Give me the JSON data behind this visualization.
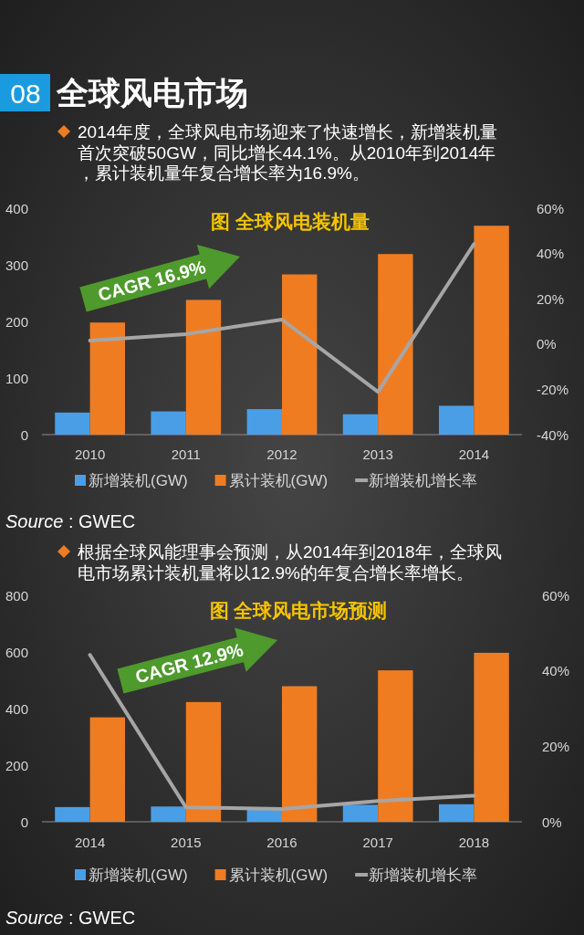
{
  "chart_data": [
    {
      "type": "bar",
      "title": "图 全球风电装机量",
      "categories": [
        "2010",
        "2011",
        "2012",
        "2013",
        "2014"
      ],
      "series": [
        {
          "name": "新增装机(GW)",
          "color": "#4a9ee6",
          "values": [
            39,
            41,
            45,
            36,
            51
          ]
        },
        {
          "name": "累计装机(GW)",
          "color": "#f07c22",
          "values": [
            198,
            238,
            283,
            319,
            369
          ]
        },
        {
          "name": "新增装机增长率",
          "type": "line",
          "axis": "y2",
          "color": "#a6a6a6",
          "values": [
            1.5,
            4.4,
            10.8,
            -21.1,
            44.1
          ]
        }
      ],
      "ylim": [
        0,
        400
      ],
      "yticks": [
        0,
        100,
        200,
        300,
        400
      ],
      "y2lim": [
        -40,
        60
      ],
      "y2ticks": [
        {
          "value": -40,
          "label": "-40%"
        },
        {
          "value": -20,
          "label": "-20%"
        },
        {
          "value": 0,
          "label": "0%"
        },
        {
          "value": 20,
          "label": "20%"
        },
        {
          "value": 40,
          "label": "40%"
        },
        {
          "value": 60,
          "label": "60%"
        }
      ],
      "legend": "bottom",
      "line_style": "solid",
      "annotations": [
        "08",
        "全球风电市场",
        "2014年度，全球风电市场迎来了快速增长，新增装机量首次突破50GW，同比增长44.1%。从2010年到2014年，累计装机量年复合增长率为16.9%。",
        "CAGR  16.9%",
        "*Source* : GWEC"
      ]
    },
    {
      "type": "bar",
      "title": "图 全球风电市场预测",
      "categories": [
        "2014",
        "2015",
        "2016",
        "2017",
        "2018"
      ],
      "series": [
        {
          "name": "新增装机(GW)",
          "color": "#4a9ee6",
          "values": [
            52,
            54,
            45,
            60,
            62
          ]
        },
        {
          "name": "累计装机(GW)",
          "color": "#f07c22",
          "values": [
            369,
            423,
            479,
            535,
            597
          ]
        },
        {
          "name": "新增装机增长率",
          "type": "line",
          "axis": "y2",
          "color": "#a6a6a6",
          "values": [
            44.2,
            3.8,
            3.4,
            5.5,
            6.9
          ]
        }
      ],
      "ylim": [
        0,
        800
      ],
      "yticks": [
        0,
        200,
        400,
        600,
        800
      ],
      "y2lim": [
        0,
        60
      ],
      "y2ticks": [
        {
          "value": 0,
          "label": "0%"
        },
        {
          "value": 20,
          "label": "20%"
        },
        {
          "value": 40,
          "label": "40%"
        },
        {
          "value": 60,
          "label": "60%"
        }
      ],
      "legend": "bottom",
      "line_style": "solid",
      "annotations": [
        "根据全球风能理事会预测，从2014年到2018年，全球风电市场累计装机量将以12.9%的年复合增长率增长。",
        "CAGR  12.9%",
        "*Source* : GWEC"
      ]
    }
  ]
}
